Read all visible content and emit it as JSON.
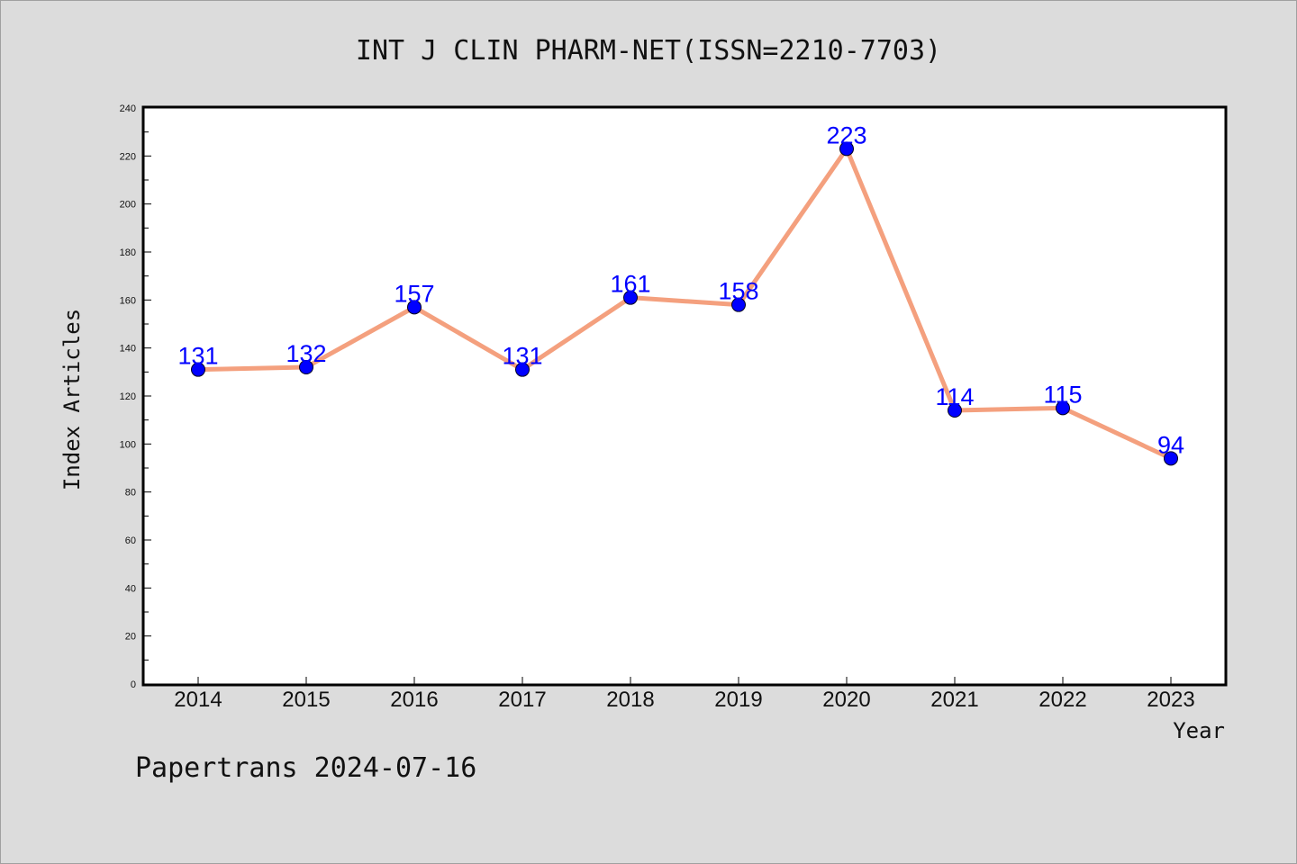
{
  "chart_data": {
    "type": "line",
    "title": "INT J CLIN PHARM-NET(ISSN=2210-7703)",
    "xlabel": "Year",
    "ylabel": "Index Articles",
    "categories": [
      "2014",
      "2015",
      "2016",
      "2017",
      "2018",
      "2019",
      "2020",
      "2021",
      "2022",
      "2023"
    ],
    "values": [
      131,
      132,
      157,
      131,
      161,
      158,
      223,
      114,
      115,
      94
    ],
    "ylim": [
      0,
      240
    ],
    "yticks": [
      0,
      20,
      40,
      60,
      80,
      100,
      120,
      140,
      160,
      180,
      200,
      220,
      240
    ],
    "grid": false,
    "legend": "none",
    "colors": {
      "line": "#f4a07e",
      "marker": "#0000ff",
      "data_label": "#0000ff",
      "plot_background": "#ffffff",
      "page_background": "#dcdcdc"
    }
  },
  "footer": "Papertrans 2024-07-16"
}
